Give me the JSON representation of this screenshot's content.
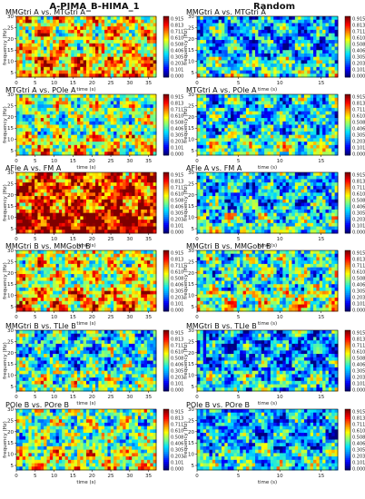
{
  "figure": {
    "column_titles": [
      "A-PIMA_B-HIMA_1",
      "Random"
    ],
    "xlabel": "time (s)",
    "ylabel": "frequency (Hz)",
    "colormap": [
      "#00007f",
      "#0000ff",
      "#0080ff",
      "#00e0ff",
      "#7fff7f",
      "#ffff00",
      "#ff8000",
      "#ff0000",
      "#7f0000"
    ]
  },
  "chart_data": [
    {
      "type": "heatmap",
      "column": "A-PIMA_B-HIMA_1",
      "title": "MMGtri A vs. MTGtri A",
      "xlabel": "time (s)",
      "ylabel": "frequency (Hz)",
      "xlim": [
        0,
        37
      ],
      "ylim": [
        3,
        30
      ],
      "xticks": [
        0,
        5,
        10,
        15,
        20,
        25,
        30,
        35
      ],
      "yticks": [
        5,
        10,
        15,
        20,
        25,
        30
      ],
      "colorbar_ticks": [
        "0.915",
        "0.813",
        "0.711",
        "0.610",
        "0.508",
        "0.406",
        "0.305",
        "0.203",
        "0.101",
        "0.000"
      ],
      "level": 0.62
    },
    {
      "type": "heatmap",
      "column": "Random",
      "title": "MMGtri A vs. MTGtri A",
      "xlabel": "time (s)",
      "ylabel": "frequency (Hz)",
      "xlim": [
        0,
        17
      ],
      "ylim": [
        3,
        30
      ],
      "xticks": [
        0,
        5,
        10,
        15
      ],
      "yticks": [
        5,
        10,
        15,
        20,
        25,
        30
      ],
      "colorbar_ticks": [
        "0.915",
        "0.813",
        "0.711",
        "0.610",
        "0.508",
        "0.406",
        "0.305",
        "0.203",
        "0.101",
        "0.000"
      ],
      "level": 0.3
    },
    {
      "type": "heatmap",
      "column": "A-PIMA_B-HIMA_1",
      "title": "MTGtri A vs. POle A",
      "xlabel": "time (s)",
      "ylabel": "frequency (Hz)",
      "xlim": [
        0,
        37
      ],
      "ylim": [
        3,
        30
      ],
      "xticks": [
        0,
        5,
        10,
        15,
        20,
        25,
        30,
        35
      ],
      "yticks": [
        5,
        10,
        15,
        20,
        25,
        30
      ],
      "colorbar_ticks": [
        "0.915",
        "0.813",
        "0.711",
        "0.610",
        "0.508",
        "0.406",
        "0.305",
        "0.203",
        "0.101",
        "0.000"
      ],
      "level": 0.5
    },
    {
      "type": "heatmap",
      "column": "Random",
      "title": "MTGtri A vs. POle A",
      "xlabel": "time (s)",
      "ylabel": "frequency (Hz)",
      "xlim": [
        0,
        17
      ],
      "ylim": [
        3,
        30
      ],
      "xticks": [
        0,
        5,
        10,
        15
      ],
      "yticks": [
        5,
        10,
        15,
        20,
        25,
        30
      ],
      "colorbar_ticks": [
        "0.915",
        "0.813",
        "0.711",
        "0.610",
        "0.508",
        "0.406",
        "0.305",
        "0.203",
        "0.101",
        "0.000"
      ],
      "level": 0.35
    },
    {
      "type": "heatmap",
      "column": "A-PIMA_B-HIMA_1",
      "title": "AFle A vs. FM A",
      "xlabel": "time (s)",
      "ylabel": "frequency (Hz)",
      "xlim": [
        0,
        37
      ],
      "ylim": [
        3,
        30
      ],
      "xticks": [
        0,
        5,
        10,
        15,
        20,
        25,
        30,
        35
      ],
      "yticks": [
        5,
        10,
        15,
        20,
        25,
        30
      ],
      "colorbar_ticks": [
        "0.915",
        "0.813",
        "0.711",
        "0.610",
        "0.508",
        "0.406",
        "0.305",
        "0.203",
        "0.101",
        "0.000"
      ],
      "level": 0.82
    },
    {
      "type": "heatmap",
      "column": "Random",
      "title": "AFle A vs. FM A",
      "xlabel": "time (s)",
      "ylabel": "frequency (Hz)",
      "xlim": [
        0,
        17
      ],
      "ylim": [
        3,
        30
      ],
      "xticks": [
        0,
        5,
        10,
        15
      ],
      "yticks": [
        5,
        10,
        15,
        20,
        25,
        30
      ],
      "colorbar_ticks": [
        "0.915",
        "0.813",
        "0.711",
        "0.610",
        "0.508",
        "0.406",
        "0.305",
        "0.203",
        "0.101",
        "0.000"
      ],
      "level": 0.33
    },
    {
      "type": "heatmap",
      "column": "A-PIMA_B-HIMA_1",
      "title": "MMGtri B vs. MMGobl B",
      "xlabel": "time (s)",
      "ylabel": "frequency (Hz)",
      "xlim": [
        0,
        37
      ],
      "ylim": [
        3,
        30
      ],
      "xticks": [
        0,
        5,
        10,
        15,
        20,
        25,
        30,
        35
      ],
      "yticks": [
        5,
        10,
        15,
        20,
        25,
        30
      ],
      "colorbar_ticks": [
        "0.915",
        "0.813",
        "0.711",
        "0.610",
        "0.508",
        "0.406",
        "0.305",
        "0.203",
        "0.101",
        "0.000"
      ],
      "level": 0.58
    },
    {
      "type": "heatmap",
      "column": "Random",
      "title": "MMGtri B vs. MMGobl B",
      "xlabel": "time (s)",
      "ylabel": "frequency (Hz)",
      "xlim": [
        0,
        17
      ],
      "ylim": [
        3,
        30
      ],
      "xticks": [
        0,
        5,
        10,
        15
      ],
      "yticks": [
        5,
        10,
        15,
        20,
        25,
        30
      ],
      "colorbar_ticks": [
        "0.915",
        "0.813",
        "0.711",
        "0.610",
        "0.508",
        "0.406",
        "0.305",
        "0.203",
        "0.101",
        "0.000"
      ],
      "level": 0.42
    },
    {
      "type": "heatmap",
      "column": "A-PIMA_B-HIMA_1",
      "title": "MMGtri B vs. TLle B",
      "xlabel": "time (s)",
      "ylabel": "frequency (Hz)",
      "xlim": [
        0,
        37
      ],
      "ylim": [
        3,
        30
      ],
      "xticks": [
        0,
        5,
        10,
        15,
        20,
        25,
        30,
        35
      ],
      "yticks": [
        5,
        10,
        15,
        20,
        25,
        30
      ],
      "colorbar_ticks": [
        "0.915",
        "0.813",
        "0.711",
        "0.610",
        "0.508",
        "0.406",
        "0.305",
        "0.203",
        "0.101",
        "0.000"
      ],
      "level": 0.38
    },
    {
      "type": "heatmap",
      "column": "Random",
      "title": "MMGtri B vs. TLle B",
      "xlabel": "time (s)",
      "ylabel": "frequency (Hz)",
      "xlim": [
        0,
        17
      ],
      "ylim": [
        3,
        30
      ],
      "xticks": [
        0,
        5,
        10,
        15
      ],
      "yticks": [
        5,
        10,
        15,
        20,
        25,
        30
      ],
      "colorbar_ticks": [
        "0.915",
        "0.813",
        "0.711",
        "0.610",
        "0.508",
        "0.406",
        "0.305",
        "0.203",
        "0.101",
        "0.000"
      ],
      "level": 0.27
    },
    {
      "type": "heatmap",
      "column": "A-PIMA_B-HIMA_1",
      "title": "POle B vs. POre B",
      "xlabel": "time (s)",
      "ylabel": "frequency (Hz)",
      "xlim": [
        0,
        37
      ],
      "ylim": [
        3,
        30
      ],
      "xticks": [
        0,
        5,
        10,
        15,
        20,
        25,
        30,
        35
      ],
      "yticks": [
        5,
        10,
        15,
        20,
        25,
        30
      ],
      "colorbar_ticks": [
        "0.915",
        "0.813",
        "0.711",
        "0.610",
        "0.508",
        "0.406",
        "0.305",
        "0.203",
        "0.101",
        "0.000"
      ],
      "level": 0.48
    },
    {
      "type": "heatmap",
      "column": "Random",
      "title": "POle B vs. POre B",
      "xlabel": "time (s)",
      "ylabel": "frequency (Hz)",
      "xlim": [
        0,
        17
      ],
      "ylim": [
        3,
        30
      ],
      "xticks": [
        0,
        5,
        10,
        15
      ],
      "yticks": [
        5,
        10,
        15,
        20,
        25,
        30
      ],
      "colorbar_ticks": [
        "0.915",
        "0.813",
        "0.711",
        "0.610",
        "0.508",
        "0.406",
        "0.305",
        "0.203",
        "0.101",
        "0.000"
      ],
      "level": 0.3
    }
  ]
}
